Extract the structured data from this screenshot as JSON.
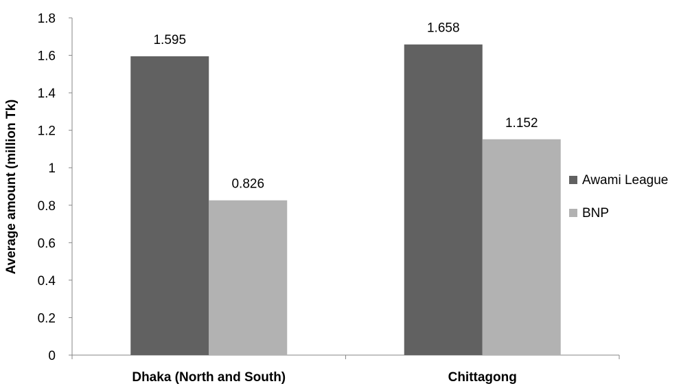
{
  "chart_data": {
    "type": "bar",
    "title": "",
    "xlabel": "",
    "ylabel": "Average amount (million Tk)",
    "categories": [
      "Dhaka (North and South)",
      "Chittagong"
    ],
    "series": [
      {
        "name": "Awami League",
        "values": [
          1.595,
          1.658
        ],
        "color": "#616161"
      },
      {
        "name": "BNP",
        "values": [
          0.826,
          1.152
        ],
        "color": "#b2b2b2"
      }
    ],
    "data_labels": [
      [
        "1.595",
        "1.658"
      ],
      [
        "0.826",
        "1.152"
      ]
    ],
    "ylim": [
      0,
      1.8
    ],
    "yticks": [
      "0",
      "0.2",
      "0.4",
      "0.6",
      "0.8",
      "1",
      "1.2",
      "1.4",
      "1.6",
      "1.8"
    ],
    "grid": false,
    "legend_position": "right"
  }
}
